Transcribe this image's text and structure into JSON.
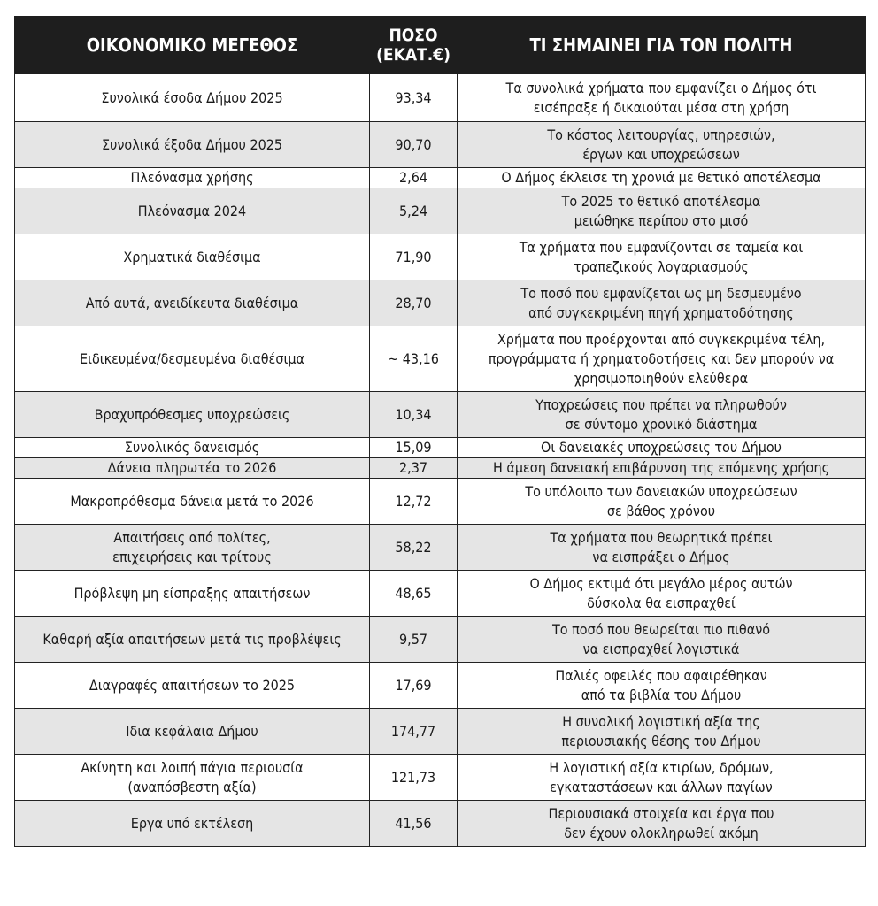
{
  "headers": {
    "col1": "ΟΙΚΟΝΟΜΙΚΟ ΜΕΓΕΘΟΣ",
    "col2_line1": "ΠΟΣΟ",
    "col2_line2": "(ΕΚΑΤ.€)",
    "col3": "ΤΙ ΣΗΜΑΙΝΕΙ ΓΙΑ ΤΟΝ ΠΟΛΙΤΗ"
  },
  "rows": [
    {
      "item": "Συνολικά έσοδα Δήμου 2025",
      "amount": "93,34",
      "meaning": "Τα συνολικά χρήματα που εμφανίζει ο Δήμος ότι\nεισέπραξε ή δικαιούται μέσα στη χρήση"
    },
    {
      "item": "Συνολικά έξοδα Δήμου 2025",
      "amount": "90,70",
      "meaning": "Το κόστος λειτουργίας, υπηρεσιών,\nέργων και υποχρεώσεων"
    },
    {
      "item": "Πλεόνασμα χρήσης",
      "amount": "2,64",
      "meaning": "Ο Δήμος έκλεισε τη χρονιά με θετικό αποτέλεσμα"
    },
    {
      "item": "Πλεόνασμα 2024",
      "amount": "5,24",
      "meaning": "Το 2025 το θετικό αποτέλεσμα\nμειώθηκε περίπου στο μισό"
    },
    {
      "item": "Χρηματικά διαθέσιμα",
      "amount": "71,90",
      "meaning": "Τα χρήματα που εμφανίζονται σε ταμεία και\nτραπεζικούς λογαριασμούς"
    },
    {
      "item": "Από αυτά, ανειδίκευτα διαθέσιμα",
      "amount": "28,70",
      "meaning": "Το ποσό που εμφανίζεται ως μη δεσμευμένο\nαπό συγκεκριμένη πηγή χρηματοδότησης"
    },
    {
      "item": "Ειδικευμένα/δεσμευμένα διαθέσιμα",
      "amount": "~ 43,16",
      "meaning": "Χρήματα που προέρχονται από συγκεκριμένα τέλη,\nπρογράμματα ή χρηματοδοτήσεις και δεν μπορούν να\nχρησιμοποιηθούν ελεύθερα"
    },
    {
      "item": "Βραχυπρόθεσμες υποχρεώσεις",
      "amount": "10,34",
      "meaning": "Υποχρεώσεις που πρέπει να πληρωθούν\nσε σύντομο χρονικό διάστημα"
    },
    {
      "item": "Συνολικός δανεισμός",
      "amount": "15,09",
      "meaning": "Οι δανειακές υποχρεώσεις του Δήμου"
    },
    {
      "item": "Δάνεια πληρωτέα το 2026",
      "amount": "2,37",
      "meaning": "Η άμεση δανειακή επιβάρυνση της επόμενης χρήσης"
    },
    {
      "item": "Μακροπρόθεσμα δάνεια μετά το 2026",
      "amount": "12,72",
      "meaning": "Το υπόλοιπο των δανειακών υποχρεώσεων\nσε βάθος χρόνου"
    },
    {
      "item": "Απαιτήσεις από πολίτες,\nεπιχειρήσεις και τρίτους",
      "amount": "58,22",
      "meaning": "Τα χρήματα που θεωρητικά πρέπει\nνα εισπράξει ο Δήμος"
    },
    {
      "item": "Πρόβλεψη μη είσπραξης απαιτήσεων",
      "amount": "48,65",
      "meaning": "Ο Δήμος εκτιμά ότι μεγάλο μέρος αυτών\nδύσκολα θα εισπραχθεί"
    },
    {
      "item": "Καθαρή αξία απαιτήσεων μετά τις προβλέψεις",
      "amount": "9,57",
      "meaning": "Το ποσό που θεωρείται πιο πιθανό\nνα εισπραχθεί λογιστικά"
    },
    {
      "item": "Διαγραφές απαιτήσεων το 2025",
      "amount": "17,69",
      "meaning": "Παλιές οφειλές που αφαιρέθηκαν\nαπό τα βιβλία του Δήμου"
    },
    {
      "item": "Ιδια κεφάλαια Δήμου",
      "amount": "174,77",
      "meaning": "Η συνολική λογιστική αξία της\nπεριουσιακής θέσης του Δήμου"
    },
    {
      "item": "Ακίνητη και λοιπή πάγια περιουσία\n(αναπόσβεστη αξία)",
      "amount": "121,73",
      "meaning": "Η λογιστική αξία κτιρίων, δρόμων,\nεγκαταστάσεων και άλλων παγίων"
    },
    {
      "item": "Εργα υπό εκτέλεση",
      "amount": "41,56",
      "meaning": "Περιουσιακά στοιχεία και έργα που\nδεν έχουν ολοκληρωθεί ακόμη"
    }
  ]
}
